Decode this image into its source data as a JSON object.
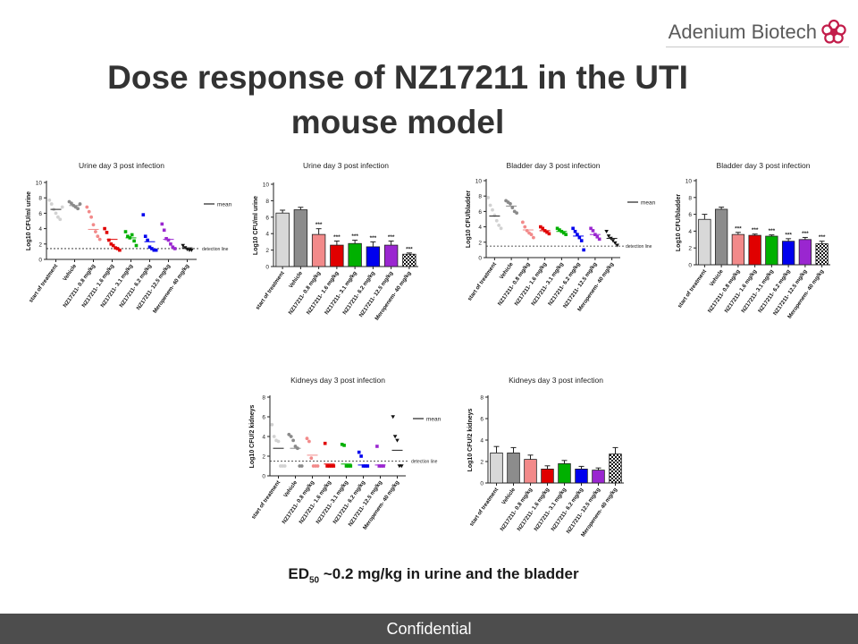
{
  "brand": {
    "name": "Adenium Biotech",
    "icon": "flower-icon",
    "accent_color": "#c21c4a"
  },
  "title": "Dose response of NZ17211 in the UTI\nmouse model",
  "caption": {
    "prefix": "ED",
    "subscript": "50",
    "rest": " ~0.2 mg/kg in urine and the bladder"
  },
  "footer": {
    "text": "Confidential"
  },
  "colors": {
    "start": "#d2d2d2",
    "vehicle": "#8a8a8a",
    "dose_0_8": "#f28a8a",
    "dose_1_6": "#e00000",
    "dose_3_1": "#00b000",
    "dose_6_2": "#0000ee",
    "dose_12_5": "#9a26d0",
    "meropenem": "#111111"
  },
  "chart_data": [
    {
      "type": "scatter",
      "title": "Urine day 3 post infection",
      "ylabel": "Log10 CFU/ml urine",
      "ylim": [
        0,
        10
      ],
      "yticks": [
        0,
        2,
        4,
        6,
        8,
        10
      ],
      "categories": [
        "start of treatment",
        "Vehicle",
        "NZ17211- 0.8 mg/kg",
        "NZ17211- 1.6 mg/kg",
        "NZ17211- 3.1 mg/kg",
        "NZ17211- 6.2 mg/kg",
        "NZ17211- 12.5 mg/kg",
        "Meropenem- 40 mg/kg"
      ],
      "series": [
        {
          "points": [
            7.7,
            7.2,
            6.5,
            6.0,
            5.5,
            5.2,
            6.8
          ],
          "mean": 6.5
        },
        {
          "points": [
            7.5,
            7.3,
            7.0,
            6.8,
            6.6,
            7.2
          ],
          "mean": 7.0
        },
        {
          "points": [
            6.8,
            6.2,
            5.5,
            4.5,
            3.6,
            3.0,
            2.6
          ],
          "mean": 3.9
        },
        {
          "points": [
            4.0,
            3.5,
            2.5,
            2.0,
            1.8,
            1.5,
            1.4,
            1.2
          ],
          "mean": 2.6
        },
        {
          "points": [
            3.6,
            3.0,
            2.8,
            3.2,
            2.4,
            1.8
          ],
          "mean": 2.8
        },
        {
          "points": [
            5.8,
            3.0,
            2.5,
            1.6,
            1.4,
            1.2,
            1.2
          ],
          "mean": 2.3
        },
        {
          "points": [
            4.6,
            3.8,
            2.7,
            2.5,
            2.0,
            1.6,
            1.4
          ],
          "mean": 2.6
        },
        {
          "points": [
            1.8,
            1.5,
            1.3,
            1.2,
            1.2
          ],
          "mean": 1.5
        }
      ],
      "legend": [
        "mean"
      ],
      "detection_limit": 1.4,
      "detection_label": "detection line"
    },
    {
      "type": "bar",
      "title": "Urine day 3 post infection",
      "ylabel": "Log10 CFU/ml urine",
      "ylim": [
        0,
        10
      ],
      "yticks": [
        0,
        2,
        4,
        6,
        8,
        10
      ],
      "categories": [
        "start of treatment",
        "Vehicle",
        "NZ17211- 0.8 mg/kg",
        "NZ17211- 1.6 mg/kg",
        "NZ17211- 3.1 mg/kg",
        "NZ17211- 6.2 mg/kg",
        "NZ17211- 12.5 mg/kg",
        "Meropenem- 40 mg/kg"
      ],
      "values": [
        6.5,
        6.9,
        3.9,
        2.6,
        2.8,
        2.4,
        2.6,
        1.5
      ],
      "errors": [
        0.35,
        0.3,
        0.7,
        0.5,
        0.4,
        0.6,
        0.5,
        0.15
      ],
      "significance": [
        "",
        "",
        "***",
        "***",
        "***",
        "***",
        "***",
        "***"
      ]
    },
    {
      "type": "scatter",
      "title": "Bladder day 3 post infection",
      "ylabel": "Log10 CFU/bladder",
      "ylim": [
        0,
        10
      ],
      "yticks": [
        0,
        2,
        4,
        6,
        8,
        10
      ],
      "categories": [
        "start of treatment",
        "Vehicle",
        "NZ17211- 0.8 mg/kg",
        "NZ17211- 1.6 mg/kg",
        "NZ17211- 3.1 mg/kg",
        "NZ17211- 6.2 mg/kg",
        "NZ17211- 12.5 mg/kg",
        "Meropenem- 40 mg/kg"
      ],
      "series": [
        {
          "points": [
            7.8,
            6.8,
            6.2,
            5.5,
            4.8,
            4.2,
            3.8
          ],
          "mean": 5.4
        },
        {
          "points": [
            7.4,
            7.2,
            7.0,
            6.5,
            6.0,
            5.8
          ],
          "mean": 6.7
        },
        {
          "points": [
            4.6,
            4.0,
            3.5,
            3.2,
            3.0,
            2.6
          ],
          "mean": 3.6
        },
        {
          "points": [
            4.0,
            3.8,
            3.5,
            3.3,
            3.1
          ],
          "mean": 3.5
        },
        {
          "points": [
            3.8,
            3.6,
            3.4,
            3.2,
            3.0
          ],
          "mean": 3.4
        },
        {
          "points": [
            3.8,
            3.4,
            3.0,
            2.6,
            2.2,
            1.0
          ],
          "mean": 2.8
        },
        {
          "points": [
            3.8,
            3.5,
            3.0,
            2.7,
            2.4
          ],
          "mean": 3.0
        },
        {
          "points": [
            3.4,
            2.8,
            2.5,
            2.2,
            1.9,
            1.6
          ],
          "mean": 2.5
        }
      ],
      "legend": [
        "mean"
      ],
      "detection_limit": 1.5,
      "detection_label": "detection line"
    },
    {
      "type": "bar",
      "title": "Bladder day 3 post infection",
      "ylabel": "Log10 CFU/bladder",
      "ylim": [
        0,
        10
      ],
      "yticks": [
        0,
        2,
        4,
        6,
        8,
        10
      ],
      "categories": [
        "start of treatment",
        "Vehicle",
        "NZ17211- 0.8 mg/kg",
        "NZ17211- 1.6 mg/kg",
        "NZ17211- 3.1 mg/kg",
        "NZ17211- 6.2 mg/kg",
        "NZ17211- 12.5 mg/kg",
        "Meropenem- 40 mg/kg"
      ],
      "values": [
        5.4,
        6.6,
        3.6,
        3.5,
        3.4,
        2.8,
        3.0,
        2.5
      ],
      "errors": [
        0.6,
        0.25,
        0.25,
        0.15,
        0.15,
        0.3,
        0.25,
        0.3
      ],
      "significance": [
        "",
        "",
        "***",
        "***",
        "***",
        "***",
        "***",
        "***"
      ]
    },
    {
      "type": "scatter",
      "title": "Kidneys day 3 post infection",
      "ylabel": "Log10 CFU/2 kidneys",
      "ylim": [
        0,
        8
      ],
      "yticks": [
        0,
        2,
        4,
        6,
        8
      ],
      "categories": [
        "start of treatment",
        "Vehicle",
        "NZ17211- 0.8 mg/kg",
        "NZ17211- 1.6 mg/kg",
        "NZ17211- 3.1 mg/kg",
        "NZ17211- 6.2 mg/kg",
        "NZ17211- 12.5 mg/kg",
        "Meropenem- 40 mg/kg"
      ],
      "series": [
        {
          "points": [
            5.2,
            4.0,
            3.6,
            3.5,
            1.0,
            1.0,
            1.0
          ],
          "mean": 2.8
        },
        {
          "points": [
            4.2,
            4.0,
            3.6,
            3.0,
            2.8,
            1.0,
            1.0
          ],
          "mean": 2.8
        },
        {
          "points": [
            3.8,
            3.5,
            1.8,
            1.0,
            1.0,
            1.0
          ],
          "mean": 2.1
        },
        {
          "points": [
            3.3,
            1.0,
            1.0,
            1.0,
            1.0
          ],
          "mean": 1.2
        },
        {
          "points": [
            3.2,
            3.1,
            1.0,
            1.0,
            1.0
          ],
          "mean": 1.2
        },
        {
          "points": [
            2.4,
            2.0,
            1.0,
            1.0,
            1.0
          ],
          "mean": 1.1
        },
        {
          "points": [
            3.0,
            1.0,
            1.0,
            1.0
          ],
          "mean": 1.1
        },
        {
          "points": [
            6.0,
            4.0,
            3.6,
            1.0,
            1.0
          ],
          "mean": 2.6
        }
      ],
      "legend": [
        "mean"
      ],
      "detection_limit": 1.5,
      "detection_label": "detection line"
    },
    {
      "type": "bar",
      "title": "Kidneys day 3 post infection",
      "ylabel": "Log10 CFU/2 kidneys",
      "ylim": [
        0,
        8
      ],
      "yticks": [
        0,
        2,
        4,
        6,
        8
      ],
      "categories": [
        "start of treatment",
        "Vehicle",
        "NZ17211- 0.8 mg/kg",
        "NZ17211- 1.6 mg/kg",
        "NZ17211- 3.1 mg/kg",
        "NZ17211- 6.2 mg/kg",
        "NZ17211- 12.5 mg/kg",
        "Meropenem- 40 mg/kg"
      ],
      "values": [
        2.8,
        2.8,
        2.2,
        1.3,
        1.8,
        1.3,
        1.2,
        2.7
      ],
      "errors": [
        0.6,
        0.5,
        0.4,
        0.3,
        0.3,
        0.25,
        0.2,
        0.6
      ],
      "significance": [
        "",
        "",
        "",
        "",
        "",
        "",
        "",
        ""
      ]
    }
  ]
}
